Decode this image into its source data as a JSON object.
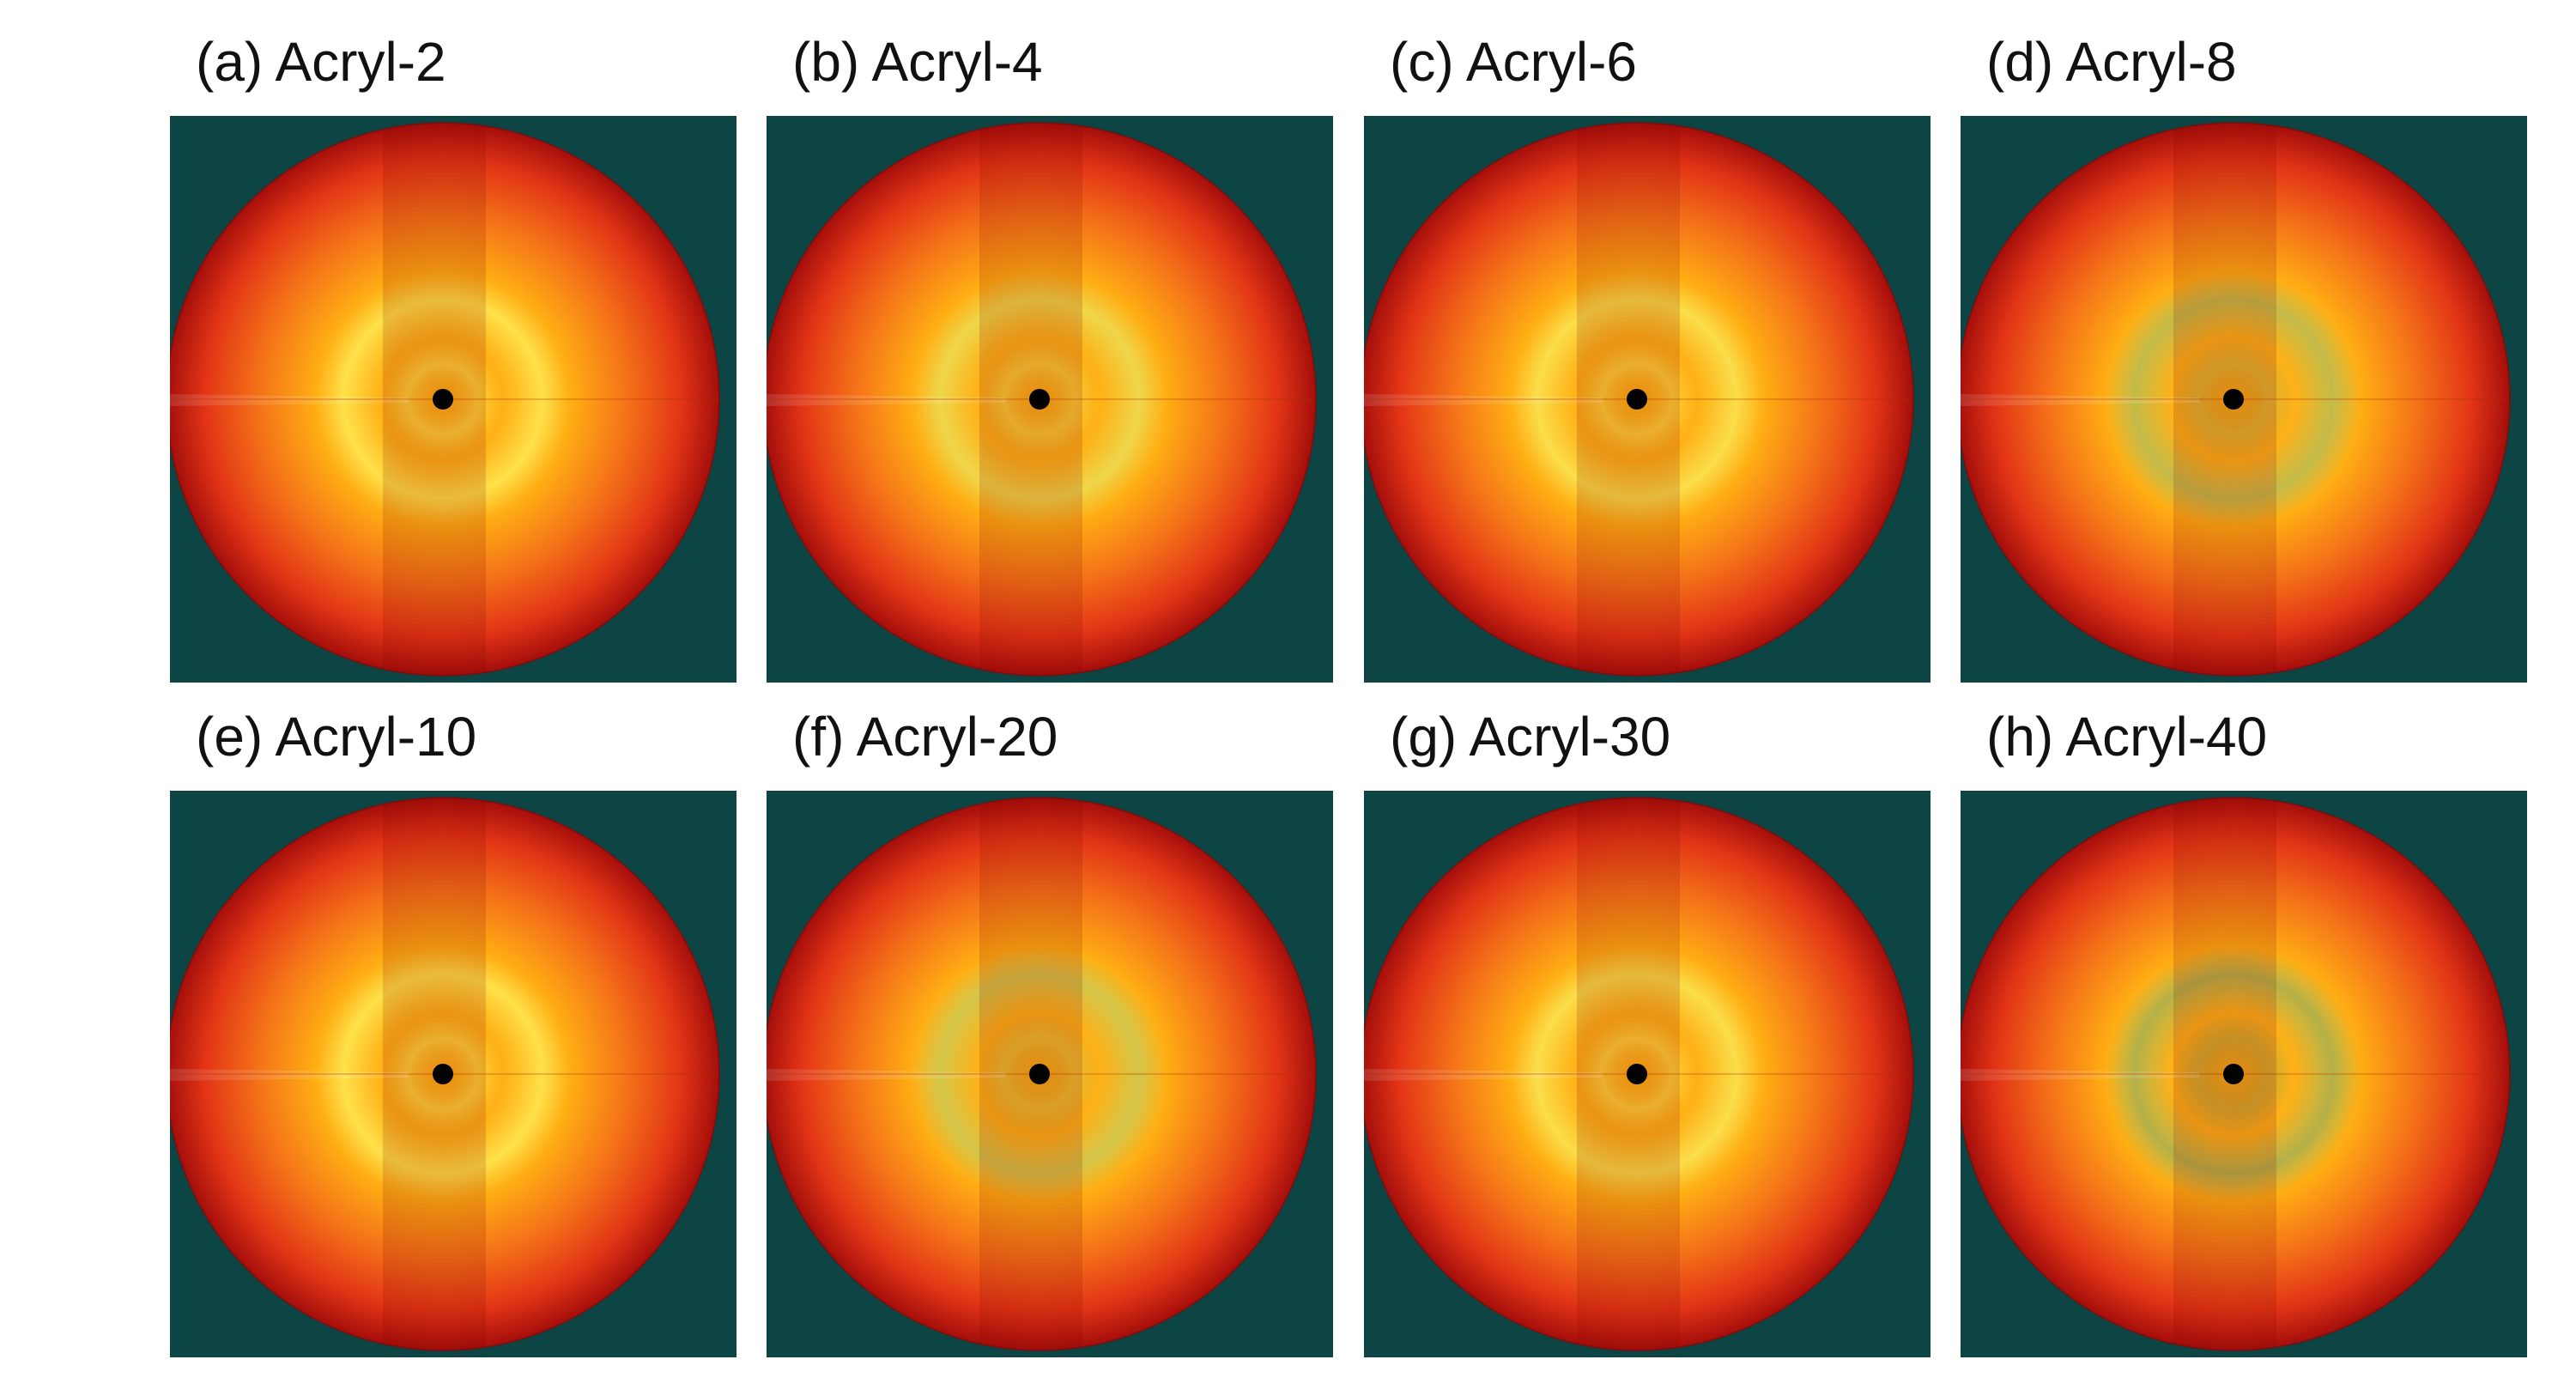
{
  "figure": {
    "background_color": "#0d4545",
    "panels": [
      {
        "label": "(a) Acryl-2",
        "ring_strength": 1.0,
        "center_bright": 1.0
      },
      {
        "label": "(b) Acryl-4",
        "ring_strength": 0.85,
        "center_bright": 0.95
      },
      {
        "label": "(c) Acryl-6",
        "ring_strength": 0.95,
        "center_bright": 1.0
      },
      {
        "label": "(d) Acryl-8",
        "ring_strength": 0.45,
        "center_bright": 0.8
      },
      {
        "label": "(e) Acryl-10",
        "ring_strength": 1.0,
        "center_bright": 1.0
      },
      {
        "label": "(f) Acryl-20",
        "ring_strength": 0.6,
        "center_bright": 0.85
      },
      {
        "label": "(g) Acryl-30",
        "ring_strength": 0.95,
        "center_bright": 1.0
      },
      {
        "label": "(h) Acryl-40",
        "ring_strength": 0.3,
        "center_bright": 0.75
      }
    ],
    "colors": {
      "ring_yellow": "#ffe14a",
      "inner_orange": "#ffae14",
      "mid_orange": "#f57418",
      "outer_red": "#e23516",
      "edge_darkred": "#a50e0b",
      "beamstop": "#000000"
    }
  }
}
